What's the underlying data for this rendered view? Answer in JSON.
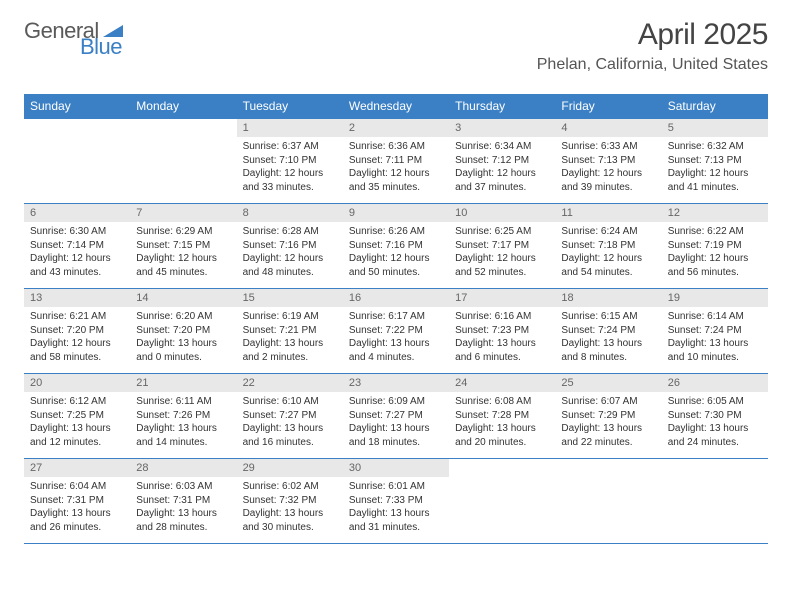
{
  "logo": {
    "text1": "General",
    "text2": "Blue"
  },
  "title": "April 2025",
  "location": "Phelan, California, United States",
  "colors": {
    "header_bg": "#3b7fc4",
    "daynum_bg": "#e8e8e8",
    "border": "#3b7fc4",
    "text": "#333333",
    "logo_gray": "#5a5a5a",
    "logo_blue": "#3b7fc4"
  },
  "weekdays": [
    "Sunday",
    "Monday",
    "Tuesday",
    "Wednesday",
    "Thursday",
    "Friday",
    "Saturday"
  ],
  "weeks": [
    [
      {
        "empty": true
      },
      {
        "empty": true
      },
      {
        "day": "1",
        "sunrise": "Sunrise: 6:37 AM",
        "sunset": "Sunset: 7:10 PM",
        "daylight1": "Daylight: 12 hours",
        "daylight2": "and 33 minutes."
      },
      {
        "day": "2",
        "sunrise": "Sunrise: 6:36 AM",
        "sunset": "Sunset: 7:11 PM",
        "daylight1": "Daylight: 12 hours",
        "daylight2": "and 35 minutes."
      },
      {
        "day": "3",
        "sunrise": "Sunrise: 6:34 AM",
        "sunset": "Sunset: 7:12 PM",
        "daylight1": "Daylight: 12 hours",
        "daylight2": "and 37 minutes."
      },
      {
        "day": "4",
        "sunrise": "Sunrise: 6:33 AM",
        "sunset": "Sunset: 7:13 PM",
        "daylight1": "Daylight: 12 hours",
        "daylight2": "and 39 minutes."
      },
      {
        "day": "5",
        "sunrise": "Sunrise: 6:32 AM",
        "sunset": "Sunset: 7:13 PM",
        "daylight1": "Daylight: 12 hours",
        "daylight2": "and 41 minutes."
      }
    ],
    [
      {
        "day": "6",
        "sunrise": "Sunrise: 6:30 AM",
        "sunset": "Sunset: 7:14 PM",
        "daylight1": "Daylight: 12 hours",
        "daylight2": "and 43 minutes."
      },
      {
        "day": "7",
        "sunrise": "Sunrise: 6:29 AM",
        "sunset": "Sunset: 7:15 PM",
        "daylight1": "Daylight: 12 hours",
        "daylight2": "and 45 minutes."
      },
      {
        "day": "8",
        "sunrise": "Sunrise: 6:28 AM",
        "sunset": "Sunset: 7:16 PM",
        "daylight1": "Daylight: 12 hours",
        "daylight2": "and 48 minutes."
      },
      {
        "day": "9",
        "sunrise": "Sunrise: 6:26 AM",
        "sunset": "Sunset: 7:16 PM",
        "daylight1": "Daylight: 12 hours",
        "daylight2": "and 50 minutes."
      },
      {
        "day": "10",
        "sunrise": "Sunrise: 6:25 AM",
        "sunset": "Sunset: 7:17 PM",
        "daylight1": "Daylight: 12 hours",
        "daylight2": "and 52 minutes."
      },
      {
        "day": "11",
        "sunrise": "Sunrise: 6:24 AM",
        "sunset": "Sunset: 7:18 PM",
        "daylight1": "Daylight: 12 hours",
        "daylight2": "and 54 minutes."
      },
      {
        "day": "12",
        "sunrise": "Sunrise: 6:22 AM",
        "sunset": "Sunset: 7:19 PM",
        "daylight1": "Daylight: 12 hours",
        "daylight2": "and 56 minutes."
      }
    ],
    [
      {
        "day": "13",
        "sunrise": "Sunrise: 6:21 AM",
        "sunset": "Sunset: 7:20 PM",
        "daylight1": "Daylight: 12 hours",
        "daylight2": "and 58 minutes."
      },
      {
        "day": "14",
        "sunrise": "Sunrise: 6:20 AM",
        "sunset": "Sunset: 7:20 PM",
        "daylight1": "Daylight: 13 hours",
        "daylight2": "and 0 minutes."
      },
      {
        "day": "15",
        "sunrise": "Sunrise: 6:19 AM",
        "sunset": "Sunset: 7:21 PM",
        "daylight1": "Daylight: 13 hours",
        "daylight2": "and 2 minutes."
      },
      {
        "day": "16",
        "sunrise": "Sunrise: 6:17 AM",
        "sunset": "Sunset: 7:22 PM",
        "daylight1": "Daylight: 13 hours",
        "daylight2": "and 4 minutes."
      },
      {
        "day": "17",
        "sunrise": "Sunrise: 6:16 AM",
        "sunset": "Sunset: 7:23 PM",
        "daylight1": "Daylight: 13 hours",
        "daylight2": "and 6 minutes."
      },
      {
        "day": "18",
        "sunrise": "Sunrise: 6:15 AM",
        "sunset": "Sunset: 7:24 PM",
        "daylight1": "Daylight: 13 hours",
        "daylight2": "and 8 minutes."
      },
      {
        "day": "19",
        "sunrise": "Sunrise: 6:14 AM",
        "sunset": "Sunset: 7:24 PM",
        "daylight1": "Daylight: 13 hours",
        "daylight2": "and 10 minutes."
      }
    ],
    [
      {
        "day": "20",
        "sunrise": "Sunrise: 6:12 AM",
        "sunset": "Sunset: 7:25 PM",
        "daylight1": "Daylight: 13 hours",
        "daylight2": "and 12 minutes."
      },
      {
        "day": "21",
        "sunrise": "Sunrise: 6:11 AM",
        "sunset": "Sunset: 7:26 PM",
        "daylight1": "Daylight: 13 hours",
        "daylight2": "and 14 minutes."
      },
      {
        "day": "22",
        "sunrise": "Sunrise: 6:10 AM",
        "sunset": "Sunset: 7:27 PM",
        "daylight1": "Daylight: 13 hours",
        "daylight2": "and 16 minutes."
      },
      {
        "day": "23",
        "sunrise": "Sunrise: 6:09 AM",
        "sunset": "Sunset: 7:27 PM",
        "daylight1": "Daylight: 13 hours",
        "daylight2": "and 18 minutes."
      },
      {
        "day": "24",
        "sunrise": "Sunrise: 6:08 AM",
        "sunset": "Sunset: 7:28 PM",
        "daylight1": "Daylight: 13 hours",
        "daylight2": "and 20 minutes."
      },
      {
        "day": "25",
        "sunrise": "Sunrise: 6:07 AM",
        "sunset": "Sunset: 7:29 PM",
        "daylight1": "Daylight: 13 hours",
        "daylight2": "and 22 minutes."
      },
      {
        "day": "26",
        "sunrise": "Sunrise: 6:05 AM",
        "sunset": "Sunset: 7:30 PM",
        "daylight1": "Daylight: 13 hours",
        "daylight2": "and 24 minutes."
      }
    ],
    [
      {
        "day": "27",
        "sunrise": "Sunrise: 6:04 AM",
        "sunset": "Sunset: 7:31 PM",
        "daylight1": "Daylight: 13 hours",
        "daylight2": "and 26 minutes."
      },
      {
        "day": "28",
        "sunrise": "Sunrise: 6:03 AM",
        "sunset": "Sunset: 7:31 PM",
        "daylight1": "Daylight: 13 hours",
        "daylight2": "and 28 minutes."
      },
      {
        "day": "29",
        "sunrise": "Sunrise: 6:02 AM",
        "sunset": "Sunset: 7:32 PM",
        "daylight1": "Daylight: 13 hours",
        "daylight2": "and 30 minutes."
      },
      {
        "day": "30",
        "sunrise": "Sunrise: 6:01 AM",
        "sunset": "Sunset: 7:33 PM",
        "daylight1": "Daylight: 13 hours",
        "daylight2": "and 31 minutes."
      },
      {
        "empty": true
      },
      {
        "empty": true
      },
      {
        "empty": true
      }
    ]
  ]
}
